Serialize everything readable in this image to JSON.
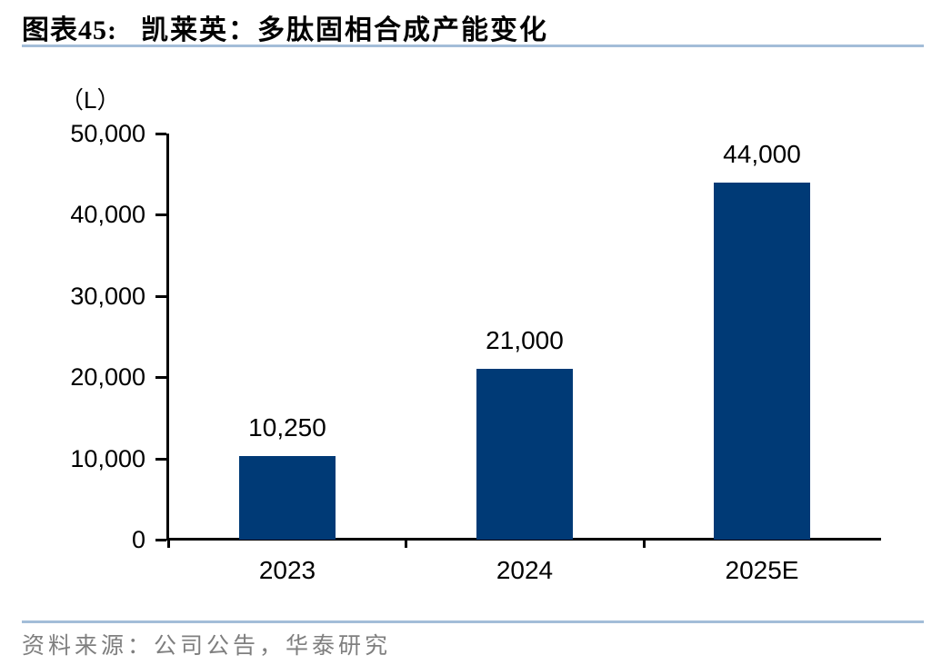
{
  "header": {
    "chart_label": "图表45:",
    "title": "凯莱英：多肽固相合成产能变化"
  },
  "chart_data": {
    "type": "bar",
    "title": "凯莱英：多肽固相合成产能变化",
    "unit_label": "（L）",
    "categories": [
      "2023",
      "2024",
      "2025E"
    ],
    "values": [
      10250,
      21000,
      44000
    ],
    "value_labels": [
      "10,250",
      "21,000",
      "44,000"
    ],
    "ylim": [
      0,
      50000
    ],
    "ytick_step": 10000,
    "ytick_labels": [
      "0",
      "10,000",
      "20,000",
      "30,000",
      "40,000",
      "50,000"
    ],
    "xlabel": "",
    "ylabel": "（L）",
    "grid": false,
    "legend_position": "none"
  },
  "footer": {
    "source": "资料来源：公司公告，华泰研究"
  },
  "colors": {
    "bar": "#003A76",
    "axis": "#000000",
    "divider": "#A3BDD8",
    "source_text": "#7F7F7F",
    "title_text": "#000000"
  }
}
